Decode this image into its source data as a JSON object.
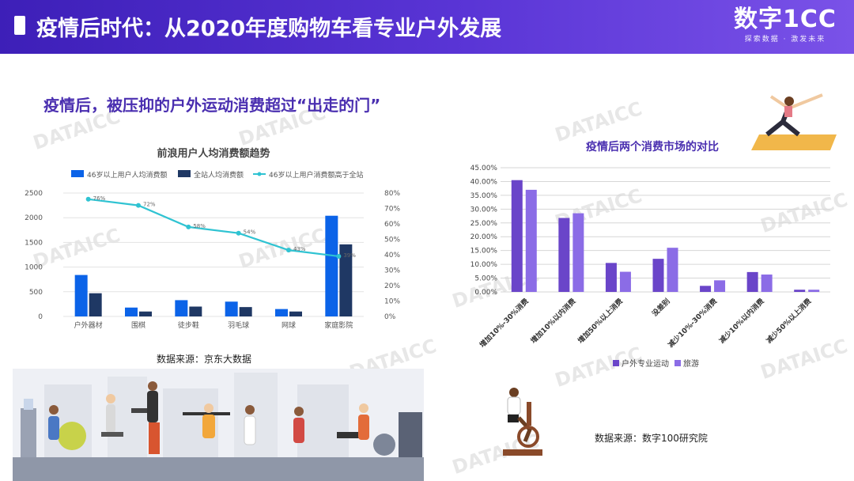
{
  "header": {
    "title": "疫情后时代：从2020年度购物车看专业户外发展"
  },
  "logo": {
    "main": "数字1CC",
    "sub": "探索数据 · 激发未来"
  },
  "section_title": "疫情后，被压抑的户外运动消费超过“出走的门”",
  "watermark_text": "DATAICC",
  "left_source": "数据来源：京东大数据",
  "right_source": "数据来源：数字100研究院",
  "colors": {
    "header_start": "#3d1fb8",
    "header_end": "#7a52e8",
    "bar_blue": "#0b63e8",
    "bar_navy": "#1f3864",
    "line_cyan": "#2fc3d2",
    "bar_purple_dark": "#6a45c9",
    "bar_purple_light": "#8b6ce6"
  },
  "chart_data": [
    {
      "type": "bar",
      "title": "前浪用户人均消费额趋势",
      "categories": [
        "户外器材",
        "围棋",
        "徒步鞋",
        "羽毛球",
        "网球",
        "家庭影院"
      ],
      "series": [
        {
          "name": "46岁以上用户人均消费额",
          "type": "bar",
          "axis": "left",
          "values": [
            840,
            180,
            330,
            300,
            150,
            2040
          ]
        },
        {
          "name": "全站人均消费额",
          "type": "bar",
          "axis": "left",
          "values": [
            470,
            100,
            200,
            190,
            100,
            1460
          ]
        },
        {
          "name": "46岁以上用户消费额高于全站",
          "type": "line",
          "axis": "right",
          "values": [
            0.76,
            0.72,
            0.58,
            0.54,
            0.43,
            0.39
          ],
          "labels": [
            "76%",
            "72%",
            "58%",
            "54%",
            "43%",
            "39%"
          ]
        }
      ],
      "ylim_left": [
        0,
        2500
      ],
      "yticks_left": [
        "0",
        "500",
        "1000",
        "1500",
        "2000",
        "2500"
      ],
      "ylim_right": [
        0,
        0.8
      ],
      "yticks_right": [
        "0%",
        "10%",
        "20%",
        "30%",
        "40%",
        "50%",
        "60%",
        "70%",
        "80%"
      ],
      "legend": "top",
      "grid": true
    },
    {
      "type": "bar",
      "title": "疫情后两个消费市场的对比",
      "categories": [
        "增加10%-30%消费",
        "增加10%以内消费",
        "增加50%以上消费",
        "没差别",
        "减少10%-30%消费",
        "减少10%以内消费",
        "减少50%以上消费"
      ],
      "series": [
        {
          "name": "户外专业运动",
          "values": [
            0.405,
            0.268,
            0.105,
            0.12,
            0.022,
            0.072,
            0.008
          ]
        },
        {
          "name": "旅游",
          "values": [
            0.37,
            0.285,
            0.073,
            0.16,
            0.042,
            0.063,
            0.008
          ]
        }
      ],
      "ylim": [
        0,
        0.45
      ],
      "yticks": [
        "0.00%",
        "5.00%",
        "10.00%",
        "15.00%",
        "20.00%",
        "25.00%",
        "30.00%",
        "35.00%",
        "40.00%",
        "45.00%"
      ],
      "legend": "bottom",
      "grid": true
    }
  ]
}
